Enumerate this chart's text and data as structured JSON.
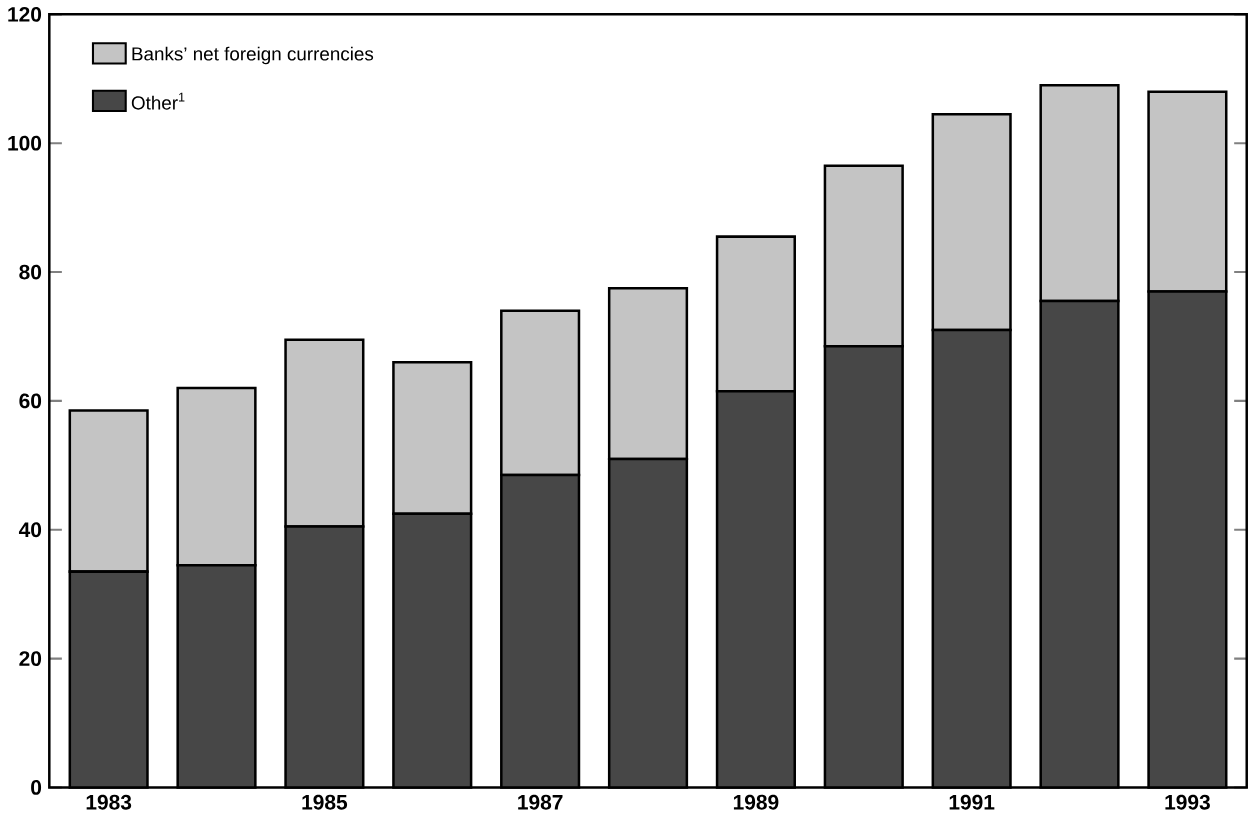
{
  "chart_data": {
    "type": "bar",
    "stacked": true,
    "categories": [
      "1983",
      null,
      "1985",
      null,
      "1987",
      null,
      "1989",
      null,
      "1991",
      null,
      "1993"
    ],
    "series": [
      {
        "name": "Other$^{1}$",
        "color": "#474747",
        "values": [
          33.5,
          34.5,
          40.5,
          42.5,
          48.5,
          51,
          61.5,
          68.5,
          71,
          75.5,
          77
        ]
      },
      {
        "name": "Banks’ net foreign currencies",
        "color": "#c4c4c4",
        "values": [
          25,
          27.5,
          29,
          23.5,
          25.5,
          26.5,
          24,
          28,
          33.5,
          33.5,
          31
        ]
      }
    ],
    "ylim": [
      0,
      120
    ],
    "yticks": [
      0,
      20,
      40,
      60,
      80,
      100,
      120
    ],
    "legend": "top left"
  }
}
